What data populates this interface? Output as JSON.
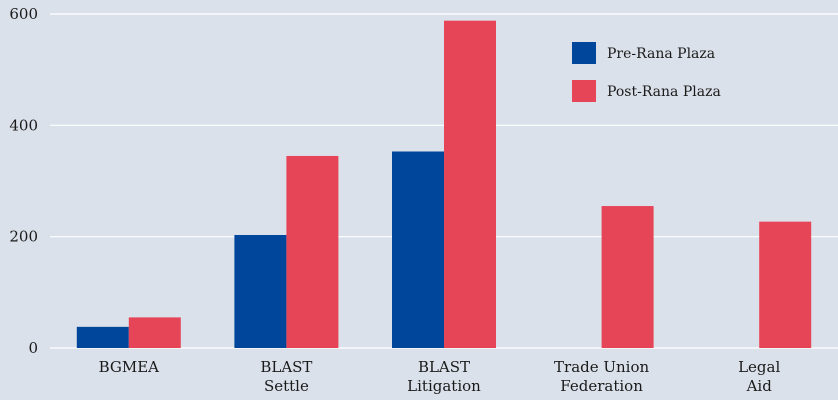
{
  "chart_data": {
    "type": "bar",
    "categories": [
      [
        "BGMEA"
      ],
      [
        "BLAST",
        "Settle"
      ],
      [
        "BLAST",
        "Litigation"
      ],
      [
        "Trade Union",
        "Federation"
      ],
      [
        "Legal",
        "Aid"
      ]
    ],
    "series": [
      {
        "name": "Pre-Rana Plaza",
        "color": "#00479b",
        "values": [
          38,
          203,
          353,
          null,
          null
        ]
      },
      {
        "name": "Post-Rana Plaza",
        "color": "#e64557",
        "values": [
          55,
          345,
          588,
          255,
          227
        ]
      }
    ],
    "yticks": [
      0,
      200,
      400,
      600
    ],
    "ylim": [
      0,
      620
    ],
    "grid": true,
    "legend": "top-right",
    "title": "",
    "xlabel": "",
    "ylabel": ""
  }
}
